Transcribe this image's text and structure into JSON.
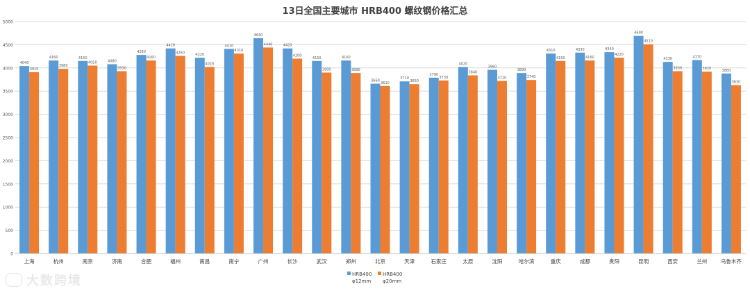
{
  "chart_data": {
    "type": "bar",
    "title": "13日全国主要城市 HRB400 螺纹钢价格汇总",
    "categories": [
      "上海",
      "杭州",
      "南京",
      "济南",
      "合肥",
      "福州",
      "南昌",
      "南宁",
      "广州",
      "长沙",
      "武汉",
      "郑州",
      "北京",
      "天津",
      "石家庄",
      "太原",
      "沈阳",
      "哈尔滨",
      "重庆",
      "成都",
      "贵阳",
      "昆明",
      "西安",
      "兰州",
      "乌鲁木齐"
    ],
    "series": [
      {
        "name": "HRB400 φ12mm",
        "legend_line1": "HRB400",
        "legend_line2": "φ12mm",
        "color": "#5b9bd5",
        "values": [
          4040,
          4160,
          4150,
          4080,
          4280,
          4420,
          4220,
          4410,
          4640,
          4420,
          4150,
          4160,
          3660,
          3710,
          3790,
          4020,
          3960,
          3890,
          4310,
          4330,
          4340,
          4690,
          4130,
          4170,
          3880
        ]
      },
      {
        "name": "HRB400 φ20mm",
        "legend_line1": "HRB400",
        "legend_line2": "φ20mm",
        "color": "#ed7d31",
        "values": [
          3910,
          3980,
          4050,
          3930,
          4160,
          4260,
          4020,
          4310,
          4440,
          4200,
          3900,
          3890,
          3610,
          3650,
          3730,
          3840,
          3720,
          3740,
          4150,
          4160,
          4220,
          4510,
          3930,
          3920,
          3630
        ]
      }
    ],
    "ylim": [
      0,
      5000
    ],
    "yticks": [
      0,
      500,
      1000,
      1500,
      2000,
      2500,
      3000,
      3500,
      4000,
      4500,
      5000
    ],
    "grid": true,
    "legend": "bottom-center"
  },
  "watermark": {
    "text": "大数跨境",
    "icon": "logo-icon"
  }
}
